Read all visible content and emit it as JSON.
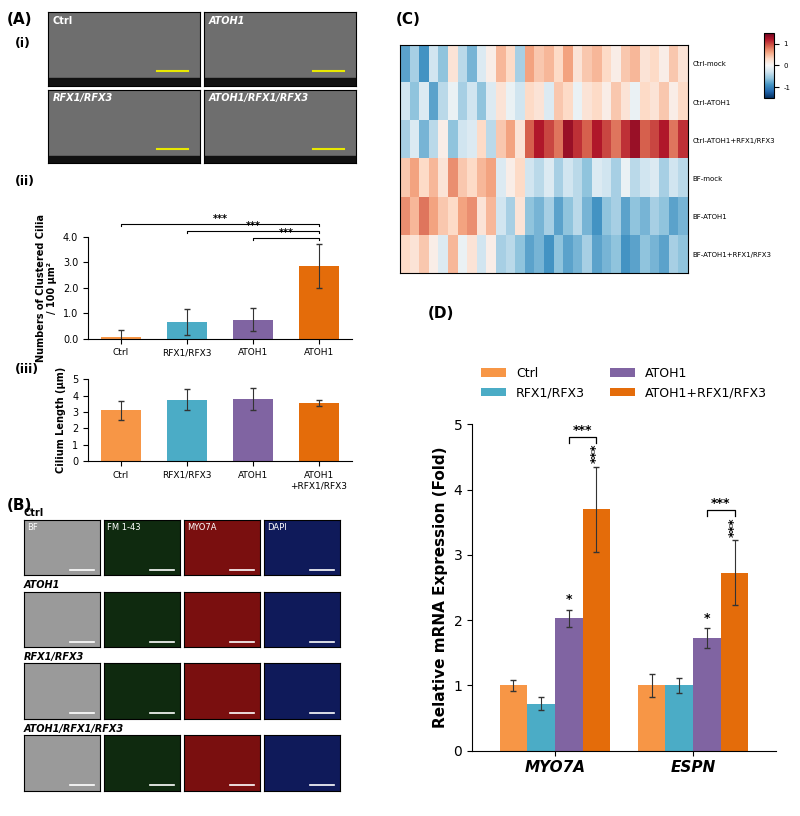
{
  "panel_labels": {
    "A": "(A)",
    "i": "(i)",
    "ii": "(ii)",
    "iii": "(iii)",
    "B": "(B)",
    "C": "(C)",
    "D": "(D)"
  },
  "image_panels": {
    "sem": {
      "titles": [
        "Ctrl",
        "ATOH1",
        "RFX1/RFX3",
        "ATOH1/RFX1/RFX3"
      ]
    },
    "staining": {
      "rows": [
        "Ctrl",
        "ATOH1",
        "RFX1/RFX3",
        "ATOH1/RFX1/RFX3"
      ],
      "columns": [
        "BF",
        "FM 1-43",
        "MYO7A",
        "DAPI"
      ]
    }
  },
  "chart_data": [
    {
      "panel": "(ii)",
      "type": "bar",
      "ylabel": "Numbers of Clustered Cilia\n/ 100 µm²",
      "categories": [
        "Ctrl",
        "RFX1/RFX3",
        "ATOH1",
        "ATOH1"
      ],
      "values": [
        0.05,
        0.65,
        0.75,
        2.85
      ],
      "errors": [
        0.3,
        0.5,
        0.45,
        0.85
      ],
      "colors": [
        "#F79646",
        "#4BACC6",
        "#8064A2",
        "#E46C0A"
      ],
      "ylim": [
        0,
        4
      ],
      "yticks": [
        {
          "value": 0,
          "label": "0.0"
        },
        {
          "value": 1,
          "label": "1.0"
        },
        {
          "value": 2,
          "label": "2.0"
        },
        {
          "value": 3,
          "label": "3.0"
        },
        {
          "value": 4,
          "label": "4.0"
        }
      ],
      "brackets": [
        {
          "between": [
            2,
            3
          ],
          "label": "***"
        },
        {
          "between": [
            1,
            3
          ],
          "label": "***"
        },
        {
          "between": [
            0,
            3
          ],
          "label": "***"
        }
      ]
    },
    {
      "panel": "(iii)",
      "type": "bar",
      "ylabel": "Cilium Length (µm)",
      "categories": [
        "Ctrl",
        "RFX1/RFX3",
        "ATOH1",
        "ATOH1\n+RFX1/RFX3"
      ],
      "values": [
        3.1,
        3.75,
        3.8,
        3.55
      ],
      "errors": [
        0.6,
        0.65,
        0.7,
        0.2
      ],
      "colors": [
        "#F79646",
        "#4BACC6",
        "#8064A2",
        "#E46C0A"
      ],
      "ylim": [
        0,
        5
      ],
      "yticks": [
        0,
        1,
        2,
        3,
        4,
        5
      ]
    },
    {
      "panel": "(C)",
      "type": "heatmap",
      "tick_labels": "y",
      "rows": [
        "Ctrl-mock",
        "Ctrl-ATOH1",
        "Ctrl-ATOH1+RFX1/RFX3",
        "BF-mock",
        "BF-ATOH1",
        "BF-ATOH1+RFX1/RFX3"
      ],
      "cells": [
        [
          -0.8,
          -0.5,
          -0.9,
          -0.3,
          -0.6,
          0.2,
          -0.4,
          -0.7,
          -0.2,
          0.1,
          0.5,
          0.3,
          -0.5,
          0.6,
          0.4,
          0.5,
          0.3,
          0.6,
          0.2,
          0.4,
          0.5,
          0.3,
          0.1,
          0.4,
          0.5,
          0.2,
          0.3,
          0.1,
          0.4,
          0.2
        ],
        [
          -0.3,
          -0.6,
          -0.2,
          -0.8,
          -0.4,
          -0.1,
          -0.5,
          -0.3,
          -0.6,
          -0.2,
          0.2,
          -0.1,
          -0.3,
          0.3,
          0.2,
          -0.2,
          0.4,
          0.3,
          -0.1,
          0.2,
          0.3,
          0.1,
          0.4,
          0.2,
          -0.1,
          0.3,
          0.2,
          0.4,
          0.1,
          0.3
        ],
        [
          -0.5,
          -0.2,
          -0.7,
          -0.4,
          0.1,
          -0.6,
          -0.3,
          -0.2,
          0.3,
          -0.4,
          0.4,
          0.6,
          0.2,
          0.9,
          1.2,
          1.0,
          0.8,
          1.3,
          1.1,
          0.9,
          1.2,
          1.0,
          0.8,
          1.1,
          1.3,
          0.9,
          1.0,
          1.2,
          0.8,
          1.1
        ],
        [
          0.4,
          0.6,
          0.3,
          0.5,
          0.2,
          0.7,
          0.4,
          0.3,
          0.5,
          0.6,
          -0.2,
          0.1,
          0.3,
          -0.3,
          -0.4,
          -0.2,
          -0.5,
          -0.3,
          -0.4,
          -0.6,
          -0.2,
          -0.3,
          -0.5,
          -0.1,
          -0.4,
          -0.3,
          -0.2,
          -0.5,
          -0.3,
          -0.4
        ],
        [
          0.7,
          0.5,
          0.8,
          0.6,
          0.4,
          0.3,
          0.6,
          0.7,
          0.2,
          0.5,
          -0.3,
          -0.5,
          0.2,
          -0.6,
          -0.7,
          -0.5,
          -0.8,
          -0.6,
          -0.4,
          -0.7,
          -0.9,
          -0.6,
          -0.5,
          -0.8,
          -0.6,
          -0.7,
          -0.5,
          -0.6,
          -0.8,
          -0.7
        ],
        [
          0.3,
          0.2,
          0.4,
          0.1,
          -0.2,
          0.5,
          -0.1,
          0.2,
          -0.3,
          0.1,
          -0.5,
          -0.4,
          -0.6,
          -0.8,
          -0.7,
          -0.9,
          -0.6,
          -0.8,
          -0.7,
          -0.5,
          -0.8,
          -0.7,
          -0.6,
          -0.9,
          -0.8,
          -0.6,
          -0.7,
          -0.8,
          -0.5,
          -0.6
        ]
      ],
      "colorbar": {
        "lim": [
          -1.5,
          1.5
        ],
        "ticks": [
          -1,
          0,
          1
        ]
      }
    },
    {
      "panel": "(D)",
      "type": "grouped_bar",
      "ylabel": "Relative mRNA Expression (Fold)",
      "categories": [
        "MYO7A",
        "ESPN"
      ],
      "legend": "upper center",
      "ylim": [
        0,
        5
      ],
      "yticks": [
        0,
        1,
        2,
        3,
        4,
        5
      ],
      "series": [
        {
          "name": "Ctrl",
          "color": "#F79646",
          "values": [
            1.0,
            1.0
          ],
          "errors": [
            0.08,
            0.17
          ]
        },
        {
          "name": "RFX1/RFX3",
          "color": "#4BACC6",
          "values": [
            0.72,
            1.0
          ],
          "errors": [
            0.1,
            0.12
          ]
        },
        {
          "name": "ATOH1",
          "color": "#8064A2",
          "values": [
            2.03,
            1.73
          ],
          "errors": [
            0.13,
            0.15
          ],
          "significance": [
            "*",
            "*"
          ]
        },
        {
          "name": "ATOH1+RFX1/RFX3",
          "color": "#E46C0A",
          "values": [
            3.7,
            2.73
          ],
          "errors": [
            0.65,
            0.5
          ],
          "significance": [
            "***",
            "***"
          ]
        }
      ],
      "brackets": [
        {
          "category": "MYO7A",
          "between": [
            "ATOH1",
            "ATOH1+RFX1/RFX3"
          ],
          "label": "***"
        },
        {
          "category": "ESPN",
          "between": [
            "ATOH1",
            "ATOH1+RFX1/RFX3"
          ],
          "label": "***"
        }
      ]
    }
  ]
}
